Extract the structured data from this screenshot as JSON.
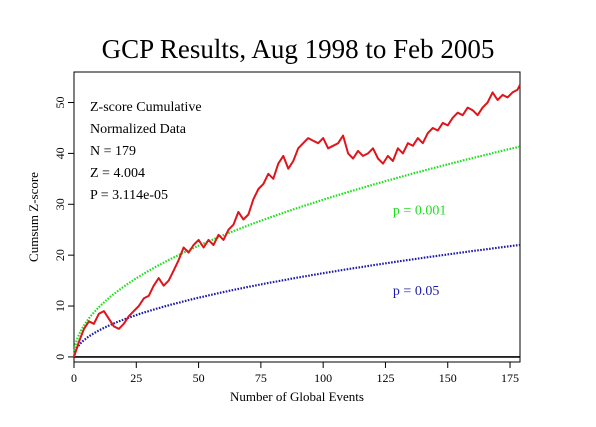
{
  "chart_data": {
    "type": "line",
    "title": "GCP Results, Aug 1998 to Feb 2005",
    "xlabel": "Number of Global Events",
    "ylabel": "Cumsum Z-score",
    "xlim": [
      0,
      179
    ],
    "ylim": [
      -1,
      56
    ],
    "xticks": [
      "0",
      "25",
      "50",
      "75",
      "100",
      "125",
      "150",
      "175"
    ],
    "yticks": [
      "0",
      "10",
      "20",
      "30",
      "40",
      "50"
    ],
    "grid": false,
    "stats": [
      "Z-score Cumulative",
      "Normalized Data",
      "N = 179",
      "Z = 4.004",
      "P = 3.114e-05"
    ],
    "series": [
      {
        "name": "Cumsum Z-score",
        "color": "#e0141b",
        "style": "solid",
        "x": [
          0,
          2,
          4,
          6,
          8,
          10,
          12,
          14,
          16,
          18,
          20,
          22,
          24,
          26,
          28,
          30,
          32,
          34,
          36,
          38,
          40,
          42,
          44,
          46,
          48,
          50,
          52,
          54,
          56,
          58,
          60,
          62,
          64,
          66,
          68,
          70,
          72,
          74,
          76,
          78,
          80,
          82,
          84,
          86,
          88,
          90,
          92,
          94,
          96,
          98,
          100,
          102,
          104,
          106,
          108,
          110,
          112,
          114,
          116,
          118,
          120,
          122,
          124,
          126,
          128,
          130,
          132,
          134,
          136,
          138,
          140,
          142,
          144,
          146,
          148,
          150,
          152,
          154,
          156,
          158,
          160,
          162,
          164,
          166,
          168,
          170,
          172,
          174,
          176,
          178,
          179
        ],
        "y": [
          0,
          3,
          5.5,
          7,
          6.5,
          8.5,
          9,
          7.5,
          6,
          5.5,
          6.5,
          8,
          9,
          10,
          11.5,
          12,
          14,
          15.5,
          14,
          15,
          17,
          19,
          21.5,
          20.5,
          22,
          23,
          21.5,
          23,
          22,
          24,
          23,
          25,
          26,
          28.5,
          27,
          28,
          31,
          33,
          34,
          36,
          35,
          38,
          39.5,
          37,
          38.5,
          41,
          42,
          43,
          42.5,
          42,
          43,
          41,
          41.5,
          42,
          43.5,
          40,
          39,
          40.5,
          39.5,
          40,
          41,
          39,
          38,
          39.5,
          38.5,
          41,
          40,
          42,
          41.5,
          43,
          42,
          44,
          45,
          44.5,
          46,
          45.5,
          47,
          48,
          47.5,
          49,
          48.5,
          47.5,
          49,
          50,
          52,
          50.5,
          51.5,
          51,
          52,
          52.5,
          53.5
        ]
      },
      {
        "name": "p = 0.001",
        "color": "#22dd22",
        "style": "dotted",
        "formula": "3.09*sqrt(x)"
      },
      {
        "name": "p = 0.05",
        "color": "#1c1caa",
        "style": "dotted",
        "formula": "1.645*sqrt(x)"
      },
      {
        "name": "baseline",
        "color": "#000000",
        "style": "solid",
        "formula": "0"
      }
    ],
    "annotations": [
      {
        "text": "p = 0.001",
        "x": 128,
        "y": 28,
        "color": "#22dd22"
      },
      {
        "text": "p = 0.05",
        "x": 128,
        "y": 12.2,
        "color": "#1c1caa"
      }
    ]
  }
}
